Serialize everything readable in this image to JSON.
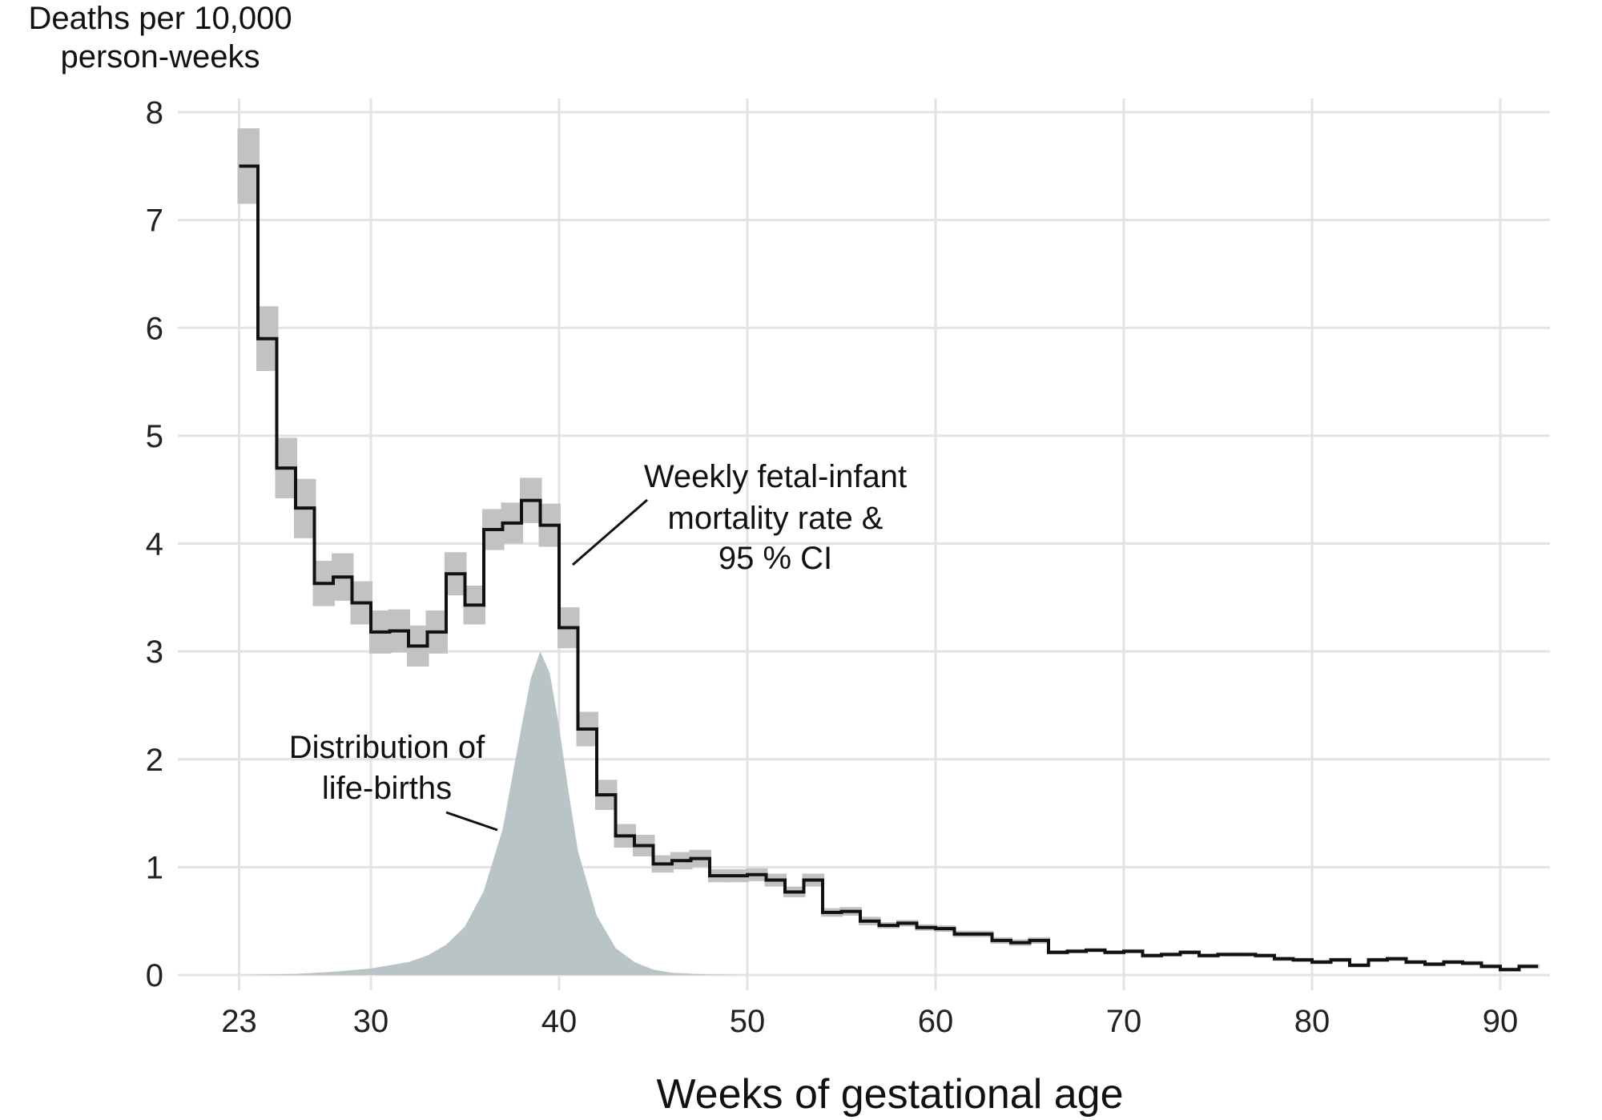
{
  "chart_data": {
    "type": "line",
    "xlabel": "Weeks of gestational age",
    "ylabel_lines": [
      "Deaths per 10,000",
      "person-weeks"
    ],
    "xlim": [
      23,
      92
    ],
    "ylim": [
      0,
      8
    ],
    "x_ticks": [
      23,
      30,
      40,
      50,
      60,
      70,
      80,
      90
    ],
    "y_ticks": [
      0,
      1,
      2,
      3,
      4,
      5,
      6,
      7,
      8
    ],
    "grid": true,
    "annotations": {
      "rate_lines": [
        "Weekly fetal-infant",
        "mortality rate &",
        "95 % CI"
      ],
      "births_lines": [
        "Distribution of",
        "life-births"
      ]
    },
    "series": [
      {
        "step": "weekly",
        "x": [
          23,
          24,
          25,
          26,
          27,
          28,
          29,
          30,
          31,
          32,
          33,
          34,
          35,
          36,
          37,
          38,
          39,
          40,
          41,
          42,
          43,
          44,
          45,
          46,
          47,
          48,
          49,
          50,
          51,
          52,
          53,
          54,
          55,
          56,
          57,
          58,
          59,
          60,
          61,
          62,
          63,
          64,
          65,
          66,
          67,
          68,
          69,
          70,
          71,
          72,
          73,
          74,
          75,
          76,
          77,
          78,
          79,
          80,
          81,
          82,
          83,
          84,
          85,
          86,
          87,
          88,
          89,
          90,
          91
        ],
        "values": [
          7.5,
          5.9,
          4.7,
          4.33,
          3.63,
          3.69,
          3.45,
          3.18,
          3.19,
          3.05,
          3.18,
          3.72,
          3.43,
          4.13,
          4.19,
          4.4,
          4.17,
          3.22,
          2.28,
          1.67,
          1.29,
          1.2,
          1.03,
          1.06,
          1.08,
          0.92,
          0.92,
          0.93,
          0.88,
          0.77,
          0.88,
          0.58,
          0.59,
          0.5,
          0.46,
          0.48,
          0.44,
          0.43,
          0.38,
          0.38,
          0.32,
          0.3,
          0.32,
          0.21,
          0.22,
          0.23,
          0.21,
          0.22,
          0.18,
          0.19,
          0.21,
          0.18,
          0.19,
          0.19,
          0.18,
          0.15,
          0.14,
          0.12,
          0.14,
          0.09,
          0.14,
          0.15,
          0.12,
          0.1,
          0.12,
          0.11,
          0.08,
          0.05,
          0.08
        ],
        "ci_lower": [
          7.15,
          5.6,
          4.42,
          4.05,
          3.42,
          3.47,
          3.25,
          2.98,
          2.99,
          2.86,
          2.98,
          3.52,
          3.25,
          3.94,
          4.0,
          4.19,
          3.97,
          3.03,
          2.12,
          1.53,
          1.18,
          1.1,
          0.95,
          0.98,
          1.0,
          0.86,
          0.86,
          0.87,
          0.82,
          0.72,
          0.82,
          0.54,
          0.55,
          0.46,
          0.43,
          0.45,
          0.41,
          0.4,
          0.35,
          0.35,
          0.29,
          0.27,
          0.29,
          0.19,
          0.2,
          0.21,
          0.19,
          0.2,
          0.16,
          0.17,
          0.19,
          0.16,
          0.17,
          0.17,
          0.16,
          0.13,
          0.12,
          0.1,
          0.12,
          0.07,
          0.12,
          0.13,
          0.1,
          0.08,
          0.1,
          0.09,
          0.06,
          0.03,
          0.06
        ],
        "ci_upper": [
          7.85,
          6.2,
          4.98,
          4.6,
          3.84,
          3.91,
          3.65,
          3.38,
          3.39,
          3.24,
          3.38,
          3.92,
          3.61,
          4.32,
          4.38,
          4.61,
          4.37,
          3.41,
          2.44,
          1.81,
          1.4,
          1.3,
          1.11,
          1.14,
          1.16,
          0.98,
          0.98,
          0.99,
          0.94,
          0.82,
          0.94,
          0.62,
          0.63,
          0.54,
          0.49,
          0.51,
          0.47,
          0.46,
          0.41,
          0.41,
          0.35,
          0.33,
          0.35,
          0.23,
          0.24,
          0.25,
          0.23,
          0.24,
          0.2,
          0.21,
          0.23,
          0.2,
          0.21,
          0.21,
          0.2,
          0.17,
          0.16,
          0.14,
          0.16,
          0.11,
          0.16,
          0.17,
          0.14,
          0.12,
          0.14,
          0.13,
          0.1,
          0.07,
          0.1
        ]
      },
      {
        "shape": "density",
        "x": [
          23,
          26,
          28,
          30,
          32,
          33,
          34,
          35,
          36,
          37,
          38,
          38.5,
          39,
          39.5,
          40,
          40.5,
          41,
          42,
          43,
          44,
          45,
          46,
          48,
          50
        ],
        "values": [
          0.0,
          0.01,
          0.03,
          0.06,
          0.12,
          0.18,
          0.28,
          0.45,
          0.78,
          1.35,
          2.3,
          2.75,
          3.0,
          2.8,
          2.3,
          1.7,
          1.15,
          0.55,
          0.25,
          0.12,
          0.05,
          0.02,
          0.005,
          0.0
        ]
      }
    ]
  }
}
